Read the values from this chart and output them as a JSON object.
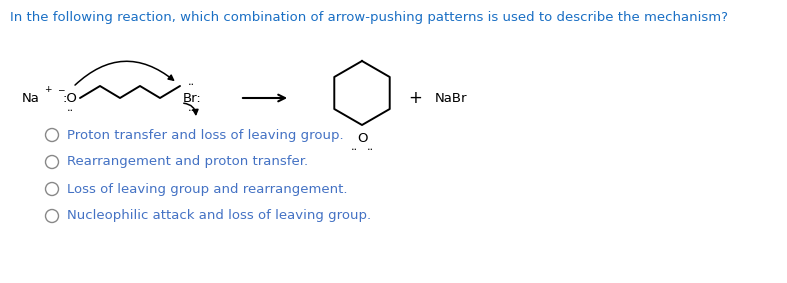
{
  "title_text": "In the following reaction, which combination of arrow-pushing patterns is used to describe the mechanism?",
  "title_color": "#1a6fc4",
  "title_fontsize": 9.5,
  "options": [
    "Proton transfer and loss of leaving group.",
    "Rearrangement and proton transfer.",
    "Loss of leaving group and rearrangement.",
    "Nucleophilic attack and loss of leaving group."
  ],
  "options_color": "#4472c4",
  "options_fontsize": 9.5,
  "bg_color": "#ffffff",
  "chem_fontsize": 9.5,
  "dot_fontsize": 6.5,
  "super_fontsize": 6.5
}
